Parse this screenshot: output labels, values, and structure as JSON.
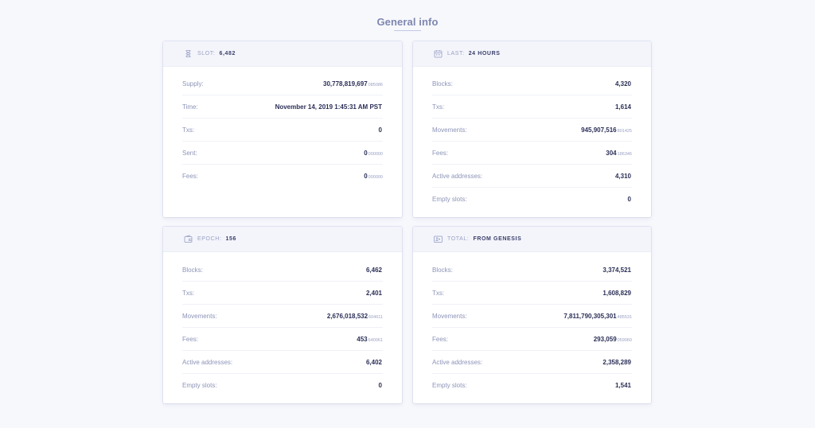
{
  "title": "General info",
  "slot_card": {
    "label": "Slot:",
    "value": "6,482",
    "icon": "hourglass-icon",
    "rows": [
      {
        "label": "Supply:",
        "value": "30,778,819,697",
        "frac": "085086"
      },
      {
        "label": "Time:",
        "value": "November 14, 2019 1:45:31 AM PST",
        "frac": ""
      },
      {
        "label": "Txs:",
        "value": "0",
        "frac": ""
      },
      {
        "label": "Sent:",
        "value": "0",
        "frac": "000000"
      },
      {
        "label": "Fees:",
        "value": "0",
        "frac": "000000"
      }
    ]
  },
  "last_card": {
    "label": "Last:",
    "value": "24 hours",
    "icon": "calendar-icon",
    "rows": [
      {
        "label": "Blocks:",
        "value": "4,320",
        "frac": ""
      },
      {
        "label": "Txs:",
        "value": "1,614",
        "frac": ""
      },
      {
        "label": "Movements:",
        "value": "945,907,516",
        "frac": "801425"
      },
      {
        "label": "Fees:",
        "value": "304",
        "frac": "186346"
      },
      {
        "label": "Active addresses:",
        "value": "4,310",
        "frac": ""
      },
      {
        "label": "Empty slots:",
        "value": "0",
        "frac": ""
      }
    ]
  },
  "epoch_card": {
    "label": "Epoch:",
    "value": "156",
    "icon": "wallet-icon",
    "rows": [
      {
        "label": "Blocks:",
        "value": "6,462",
        "frac": ""
      },
      {
        "label": "Txs:",
        "value": "2,401",
        "frac": ""
      },
      {
        "label": "Movements:",
        "value": "2,676,018,532",
        "frac": "604611"
      },
      {
        "label": "Fees:",
        "value": "453",
        "frac": "640061"
      },
      {
        "label": "Active addresses:",
        "value": "6,402",
        "frac": ""
      },
      {
        "label": "Empty slots:",
        "value": "0",
        "frac": ""
      }
    ]
  },
  "total_card": {
    "label": "Total:",
    "value": "From genesis",
    "icon": "sigma-icon",
    "rows": [
      {
        "label": "Blocks:",
        "value": "3,374,521",
        "frac": ""
      },
      {
        "label": "Txs:",
        "value": "1,608,829",
        "frac": ""
      },
      {
        "label": "Movements:",
        "value": "7,811,790,305,301",
        "frac": "485531"
      },
      {
        "label": "Fees:",
        "value": "293,059",
        "frac": "059060"
      },
      {
        "label": "Active addresses:",
        "value": "2,358,289",
        "frac": ""
      },
      {
        "label": "Empty slots:",
        "value": "1,541",
        "frac": ""
      }
    ]
  }
}
